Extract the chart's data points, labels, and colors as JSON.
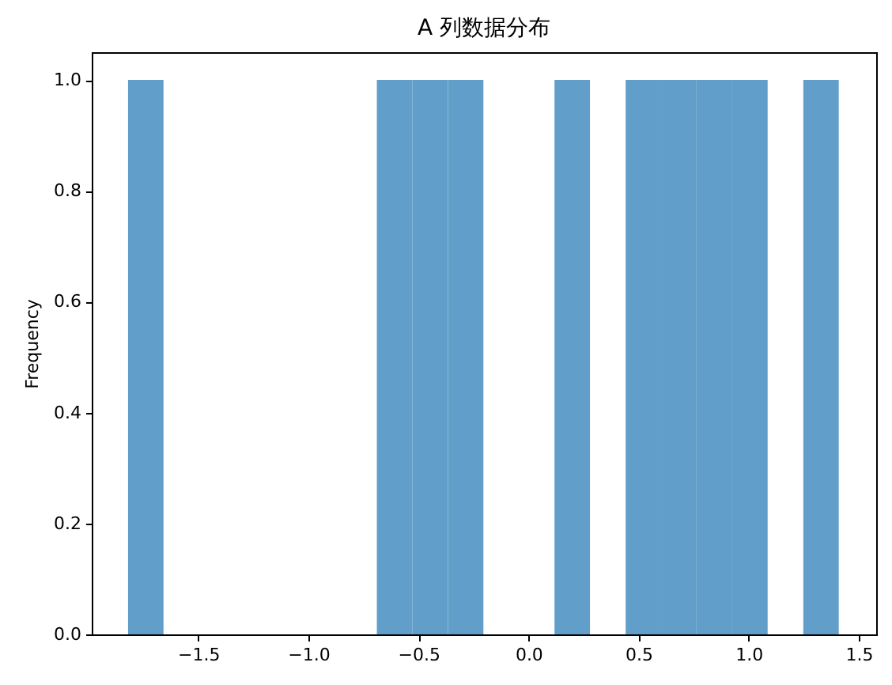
{
  "chart_data": {
    "type": "histogram",
    "title": "A 列数据分布",
    "ylabel": "Frequency",
    "color": "#619fca",
    "bins": [
      -1.819,
      -1.658,
      -1.496,
      -1.335,
      -1.173,
      -1.012,
      -0.851,
      -0.689,
      -0.528,
      -0.366,
      -0.205,
      -0.044,
      0.118,
      0.279,
      0.441,
      0.602,
      0.763,
      0.925,
      1.086,
      1.248,
      1.409
    ],
    "values": [
      1,
      0,
      0,
      0,
      0,
      0,
      0,
      1,
      1,
      1,
      0,
      0,
      1,
      0,
      1,
      1,
      1,
      1,
      0,
      1
    ],
    "xlim": [
      -1.984,
      1.579
    ],
    "xticks": [
      {
        "value": -1.5,
        "label": "−1.5"
      },
      {
        "value": -1.0,
        "label": "−1.0"
      },
      {
        "value": -0.5,
        "label": "−0.5"
      },
      {
        "value": 0,
        "label": "0.0"
      },
      {
        "value": 0.5,
        "label": "0.5"
      },
      {
        "value": 1.0,
        "label": "1.0"
      },
      {
        "value": 1.5,
        "label": "1.5"
      }
    ],
    "ylim": [
      0,
      1.05
    ],
    "yticks": [
      {
        "value": 0,
        "label": "0.0"
      },
      {
        "value": 0.2,
        "label": "0.2"
      },
      {
        "value": 0.4,
        "label": "0.4"
      },
      {
        "value": 0.6,
        "label": "0.6"
      },
      {
        "value": 0.8,
        "label": "0.8"
      },
      {
        "value": 1.0,
        "label": "1.0"
      }
    ],
    "grid": false
  }
}
